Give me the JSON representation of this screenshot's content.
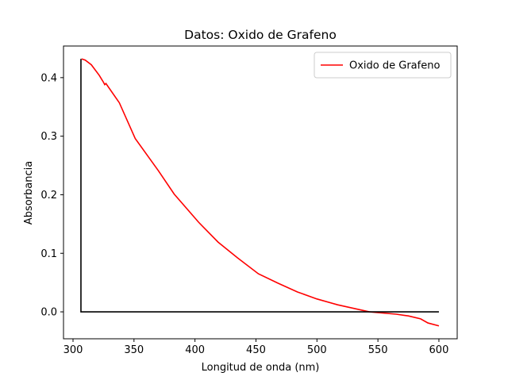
{
  "chart_data": {
    "type": "line",
    "title": "Datos: Oxido de Grafeno",
    "x_label": "Longitud de onda (nm)",
    "y_label": "Absorbancia",
    "xlim": [
      292.2,
      615
    ],
    "ylim": [
      -0.046,
      0.454
    ],
    "xticks": [
      300,
      350,
      400,
      450,
      500,
      550,
      600
    ],
    "yticks": [
      {
        "value": 0,
        "label": "0.0"
      },
      {
        "value": 0.1,
        "label": "0.1"
      },
      {
        "value": 0.2,
        "label": "0.2"
      },
      {
        "value": 0.3,
        "label": "0.3"
      },
      {
        "value": 0.4,
        "label": "0.4"
      }
    ],
    "legend": "upper right",
    "series": [
      {
        "name": "Oxido de Grafeno",
        "color": "#ff0000",
        "x": [
          307,
          310,
          315,
          321.5,
          325,
          326,
          327,
          338,
          351,
          370,
          383,
          403,
          419,
          435,
          452,
          468,
          484,
          500,
          517,
          543,
          565,
          575,
          585,
          591,
          600
        ],
        "values": [
          0.432,
          0.43,
          0.422,
          0.404,
          0.392,
          0.388,
          0.39,
          0.357,
          0.296,
          0.241,
          0.201,
          0.153,
          0.119,
          0.092,
          0.065,
          0.049,
          0.034,
          0.022,
          0.012,
          0,
          -0.004,
          -0.007,
          -0.012,
          -0.019,
          -0.024
        ]
      },
      {
        "color": "#000000",
        "x": [
          306.5,
          306.5,
          600
        ],
        "values": [
          0.432,
          0,
          0
        ]
      }
    ]
  }
}
